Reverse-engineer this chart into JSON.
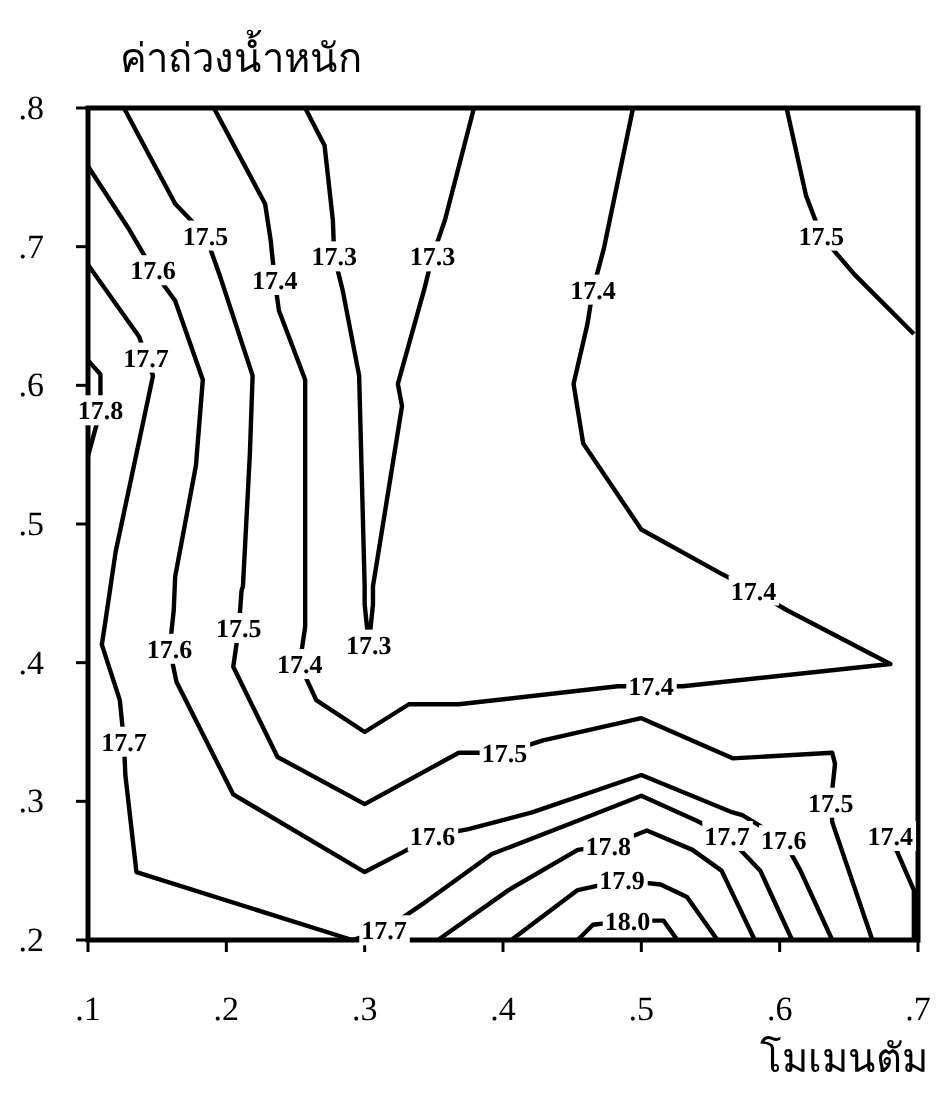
{
  "chart_data": {
    "type": "line",
    "xlabel": "โมเมนตัม",
    "ylabel": "ค่าถ่วงน้ำหนัก",
    "xlim": [
      0.1,
      0.7
    ],
    "ylim": [
      0.2,
      0.8
    ],
    "xticks": [
      {
        "value": 0.1,
        "label": ".1"
      },
      {
        "value": 0.2,
        "label": ".2"
      },
      {
        "value": 0.3,
        "label": ".3"
      },
      {
        "value": 0.4,
        "label": ".4"
      },
      {
        "value": 0.5,
        "label": ".5"
      },
      {
        "value": 0.6,
        "label": ".6"
      },
      {
        "value": 0.7,
        "label": ".7"
      }
    ],
    "yticks": [
      {
        "value": 0.2,
        "label": ".2"
      },
      {
        "value": 0.3,
        "label": ".3"
      },
      {
        "value": 0.4,
        "label": ".4"
      },
      {
        "value": 0.5,
        "label": ".5"
      },
      {
        "value": 0.6,
        "label": ".6"
      },
      {
        "value": 0.7,
        "label": ".7"
      },
      {
        "value": 0.8,
        "label": ".8"
      }
    ],
    "series": [
      {
        "color": "#000000",
        "x": [
          0.257,
          0.271,
          0.277,
          0.278,
          0.284,
          0.296,
          0.3,
          0.3,
          0.303,
          0.306,
          0.306,
          0.327,
          0.324,
          0.343,
          0.349,
          0.358,
          0.379
        ],
        "values": [
          0.8,
          0.773,
          0.719,
          0.693,
          0.669,
          0.607,
          0.455,
          0.442,
          0.413,
          0.442,
          0.455,
          0.585,
          0.601,
          0.669,
          0.693,
          0.719,
          0.8
        ]
      },
      {
        "color": "#000000",
        "x": [
          0.191,
          0.228,
          0.232,
          0.235,
          0.238,
          0.257,
          0.257,
          0.257,
          0.253,
          0.265,
          0.3,
          0.332,
          0.368,
          0.483,
          0.507,
          0.53,
          0.68,
          0.605,
          0.581,
          0.558,
          0.5,
          0.458,
          0.451,
          0.461,
          0.465,
          0.473,
          0.494
        ],
        "values": [
          0.8,
          0.731,
          0.705,
          0.676,
          0.654,
          0.604,
          0.459,
          0.426,
          0.399,
          0.373,
          0.35,
          0.37,
          0.37,
          0.383,
          0.383,
          0.383,
          0.399,
          0.438,
          0.452,
          0.464,
          0.496,
          0.558,
          0.601,
          0.644,
          0.669,
          0.699,
          0.8
        ]
      },
      {
        "color": "#000000",
        "x": [
          0.697,
          0.697,
          0.68
        ],
        "values": [
          0.2,
          0.236,
          0.275
        ]
      },
      {
        "color": "#000000",
        "x": [
          0.126,
          0.163,
          0.185,
          0.195,
          0.219,
          0.217,
          0.212,
          0.211,
          0.209,
          0.205,
          0.237,
          0.3,
          0.368,
          0.382,
          0.401,
          0.429,
          0.5,
          0.566,
          0.638,
          0.64,
          0.637,
          0.638,
          0.667
        ],
        "values": [
          0.8,
          0.731,
          0.708,
          0.68,
          0.607,
          0.55,
          0.455,
          0.452,
          0.425,
          0.397,
          0.332,
          0.298,
          0.335,
          0.335,
          0.335,
          0.344,
          0.36,
          0.331,
          0.335,
          0.327,
          0.299,
          0.285,
          0.2
        ]
      },
      {
        "color": "#000000",
        "x": [
          0.605,
          0.619,
          0.63,
          0.654,
          0.697
        ],
        "values": [
          0.8,
          0.737,
          0.708,
          0.68,
          0.637
        ]
      },
      {
        "color": "#000000",
        "x": [
          0.1,
          0.13,
          0.147,
          0.163,
          0.183,
          0.178,
          0.163,
          0.162,
          0.159,
          0.164,
          0.205,
          0.3,
          0.327,
          0.349,
          0.375,
          0.421,
          0.5,
          0.566,
          0.573,
          0.603,
          0.615,
          0.638
        ],
        "values": [
          0.758,
          0.712,
          0.683,
          0.661,
          0.604,
          0.542,
          0.462,
          0.438,
          0.41,
          0.386,
          0.305,
          0.249,
          0.263,
          0.275,
          0.28,
          0.292,
          0.319,
          0.292,
          0.29,
          0.272,
          0.25,
          0.2
        ]
      },
      {
        "color": "#000000",
        "x": [
          0.1,
          0.137,
          0.142,
          0.147,
          0.12,
          0.112,
          0.11,
          0.123,
          0.126,
          0.127,
          0.135,
          0.291,
          0.314,
          0.342,
          0.392,
          0.454,
          0.5,
          0.54,
          0.562,
          0.586,
          0.609
        ],
        "values": [
          0.687,
          0.635,
          0.62,
          0.607,
          0.48,
          0.426,
          0.413,
          0.373,
          0.343,
          0.319,
          0.249,
          0.2,
          0.207,
          0.226,
          0.262,
          0.286,
          0.304,
          0.286,
          0.275,
          0.25,
          0.2
        ]
      },
      {
        "color": "#000000",
        "x": [
          0.1,
          0.109,
          0.109,
          0.103,
          0.1
        ],
        "values": [
          0.618,
          0.608,
          0.582,
          0.56,
          0.549
        ]
      },
      {
        "color": "#000000",
        "x": [
          0.353,
          0.404,
          0.454,
          0.476,
          0.504,
          0.537,
          0.558,
          0.582
        ],
        "values": [
          0.2,
          0.236,
          0.265,
          0.268,
          0.279,
          0.265,
          0.25,
          0.2
        ]
      },
      {
        "color": "#000000",
        "x": [
          0.406,
          0.454,
          0.486,
          0.514,
          0.533,
          0.555
        ],
        "values": [
          0.2,
          0.236,
          0.243,
          0.24,
          0.231,
          0.2
        ]
      },
      {
        "color": "#000000",
        "x": [
          0.454,
          0.465,
          0.49,
          0.516,
          0.526
        ],
        "values": [
          0.2,
          0.211,
          0.214,
          0.214,
          0.2
        ]
      }
    ],
    "annotations": [
      {
        "text": "17.3",
        "x": 0.278,
        "y": 0.693
      },
      {
        "text": "17.3",
        "x": 0.349,
        "y": 0.693
      },
      {
        "text": "17.3",
        "x": 0.303,
        "y": 0.413
      },
      {
        "text": "17.4",
        "x": 0.235,
        "y": 0.676
      },
      {
        "text": "17.4",
        "x": 0.253,
        "y": 0.399
      },
      {
        "text": "17.4",
        "x": 0.507,
        "y": 0.383
      },
      {
        "text": "17.4",
        "x": 0.581,
        "y": 0.452
      },
      {
        "text": "17.4",
        "x": 0.465,
        "y": 0.669
      },
      {
        "text": "17.4",
        "x": 0.68,
        "y": 0.275
      },
      {
        "text": "17.5",
        "x": 0.185,
        "y": 0.708
      },
      {
        "text": "17.5",
        "x": 0.209,
        "y": 0.425
      },
      {
        "text": "17.5",
        "x": 0.401,
        "y": 0.335
      },
      {
        "text": "17.5",
        "x": 0.637,
        "y": 0.299
      },
      {
        "text": "17.5",
        "x": 0.63,
        "y": 0.708
      },
      {
        "text": "17.6",
        "x": 0.147,
        "y": 0.683
      },
      {
        "text": "17.6",
        "x": 0.159,
        "y": 0.41
      },
      {
        "text": "17.6",
        "x": 0.349,
        "y": 0.275
      },
      {
        "text": "17.6",
        "x": 0.603,
        "y": 0.272
      },
      {
        "text": "17.7",
        "x": 0.142,
        "y": 0.62
      },
      {
        "text": "17.7",
        "x": 0.126,
        "y": 0.343
      },
      {
        "text": "17.7",
        "x": 0.314,
        "y": 0.207
      },
      {
        "text": "17.7",
        "x": 0.562,
        "y": 0.275
      },
      {
        "text": "17.8",
        "x": 0.109,
        "y": 0.582
      },
      {
        "text": "17.8",
        "x": 0.476,
        "y": 0.268
      },
      {
        "text": "17.9",
        "x": 0.486,
        "y": 0.243
      },
      {
        "text": "18.0",
        "x": 0.49,
        "y": 0.214
      }
    ]
  }
}
